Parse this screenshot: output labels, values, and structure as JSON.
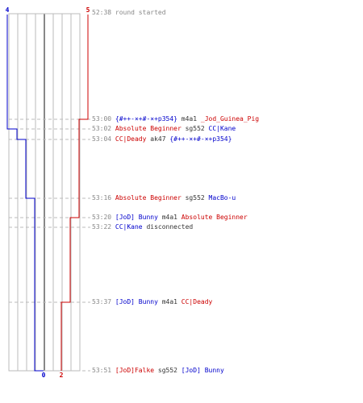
{
  "colors": {
    "blue": "#0000cc",
    "red": "#cc0000",
    "grid": "#bbbbbb",
    "text": "#333333",
    "time": "#888888"
  },
  "teams": {
    "blue": {
      "start_count": "4",
      "end_count": "0"
    },
    "red": {
      "start_count": "5",
      "end_count": "2"
    }
  },
  "events": [
    {
      "time": "52:38",
      "parts": [
        {
          "t": "round started",
          "c": "time"
        }
      ]
    },
    {
      "time": "53:00",
      "parts": [
        {
          "t": "{#++-×+#-×+p354}",
          "c": "blue"
        },
        {
          "t": " m4a1 ",
          "c": "black"
        },
        {
          "t": "_Jod_Guinea_Pig",
          "c": "red"
        }
      ]
    },
    {
      "time": "53:02",
      "parts": [
        {
          "t": "Absolute Beginner",
          "c": "red"
        },
        {
          "t": " sg552 ",
          "c": "black"
        },
        {
          "t": "CC|Kane",
          "c": "blue"
        }
      ]
    },
    {
      "time": "53:04",
      "parts": [
        {
          "t": "CC|Deady",
          "c": "red"
        },
        {
          "t": " ak47 ",
          "c": "black"
        },
        {
          "t": "{#++-×+#-×+p354}",
          "c": "blue"
        }
      ]
    },
    {
      "time": "53:16",
      "parts": [
        {
          "t": "Absolute Beginner",
          "c": "red"
        },
        {
          "t": " sg552 ",
          "c": "black"
        },
        {
          "t": "MacBo-u",
          "c": "blue"
        }
      ]
    },
    {
      "time": "53:20",
      "parts": [
        {
          "t": "[JoD] Bunny",
          "c": "blue"
        },
        {
          "t": " m4a1 ",
          "c": "black"
        },
        {
          "t": "Absolute Beginner",
          "c": "red"
        }
      ]
    },
    {
      "time": "53:22",
      "parts": [
        {
          "t": "CC|Kane",
          "c": "blue"
        },
        {
          "t": " disconnected",
          "c": "black"
        }
      ]
    },
    {
      "time": "53:37",
      "parts": [
        {
          "t": "[JoD] Bunny",
          "c": "blue"
        },
        {
          "t": " m4a1 ",
          "c": "black"
        },
        {
          "t": "CC|Deady",
          "c": "red"
        }
      ]
    },
    {
      "time": "53:51",
      "parts": [
        {
          "t": "[JoD]Falke",
          "c": "red"
        },
        {
          "t": " sg552 ",
          "c": "black"
        },
        {
          "t": "[JoD] Bunny",
          "c": "blue"
        }
      ]
    }
  ]
}
